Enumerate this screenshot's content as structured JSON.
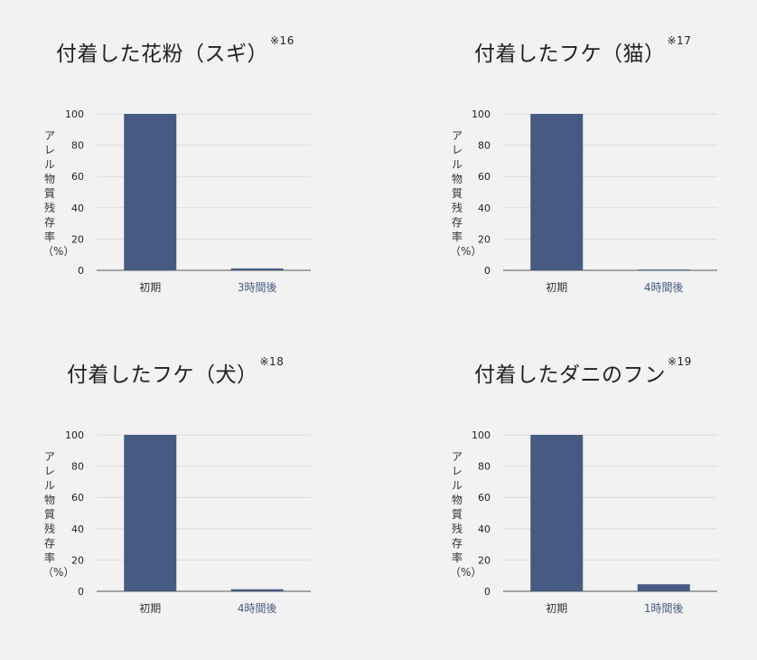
{
  "theme": {
    "bar_color": "#465a82",
    "grid_color": "#dcdcdc",
    "axis_color": "#555555",
    "category1_color": "#333333",
    "category2_color": "#465a82"
  },
  "chart_data": [
    {
      "type": "bar",
      "title": "付着した花粉（スギ）",
      "note": "※16",
      "ylabel": "アレル物質残存率（%）",
      "yticks": [
        "0",
        "20",
        "40",
        "60",
        "80",
        "100"
      ],
      "ylim": [
        0,
        100
      ],
      "categories": [
        "初期",
        "3時間後"
      ],
      "values": [
        100,
        1.2
      ],
      "grid": true
    },
    {
      "type": "bar",
      "title": "付着したフケ（猫）",
      "note": "※17",
      "ylabel": "アレル物質残存率（%）",
      "yticks": [
        "0",
        "20",
        "40",
        "60",
        "80",
        "100"
      ],
      "ylim": [
        0,
        100
      ],
      "categories": [
        "初期",
        "4時間後"
      ],
      "values": [
        100,
        0.5
      ],
      "grid": true
    },
    {
      "type": "bar",
      "title": "付着したフケ（犬）",
      "note": "※18",
      "ylabel": "アレル物質残存率（%）",
      "yticks": [
        "0",
        "20",
        "40",
        "60",
        "80",
        "100"
      ],
      "ylim": [
        0,
        100
      ],
      "categories": [
        "初期",
        "4時間後"
      ],
      "values": [
        100,
        1.3
      ],
      "grid": true
    },
    {
      "type": "bar",
      "title": "付着したダニのフン",
      "note": "※19",
      "ylabel": "アレル物質残存率（%）",
      "yticks": [
        "0",
        "20",
        "40",
        "60",
        "80",
        "100"
      ],
      "ylim": [
        0,
        100
      ],
      "categories": [
        "初期",
        "1時間後"
      ],
      "values": [
        100,
        4.5
      ],
      "grid": true
    }
  ]
}
